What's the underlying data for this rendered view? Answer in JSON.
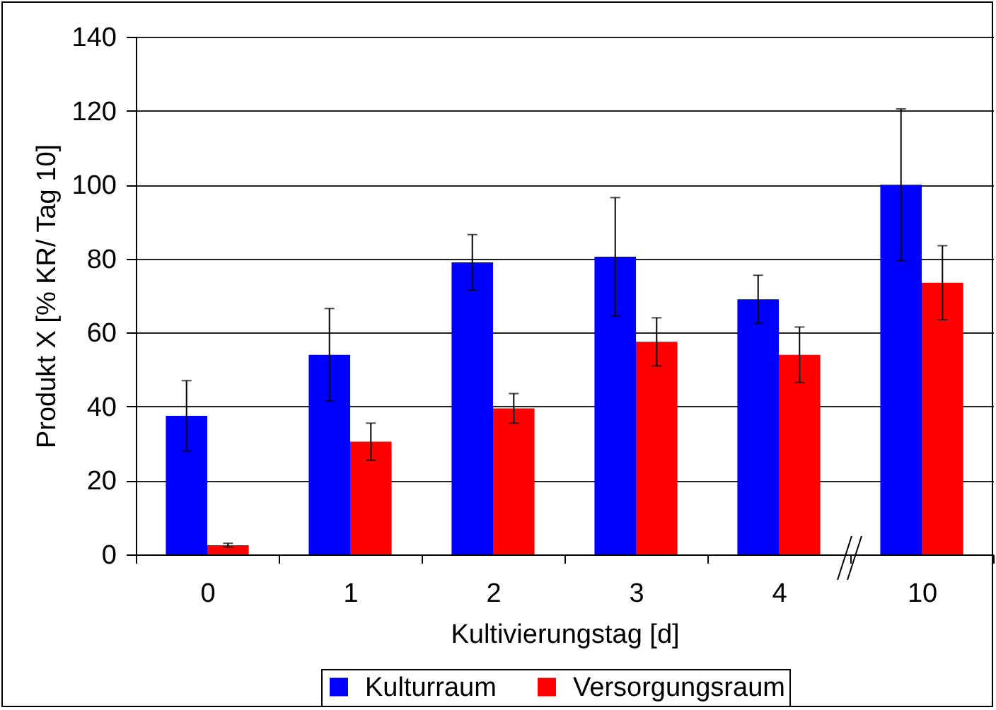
{
  "chart_data": {
    "type": "bar",
    "xlabel": "Kultivierungstag [d]",
    "ylabel": "Produkt X [% KR/ Tag 10]",
    "categories": [
      "0",
      "1",
      "2",
      "3",
      "4",
      "10"
    ],
    "series": [
      {
        "name": "Kulturraum",
        "color": "#0000ff",
        "values": [
          37.5,
          54,
          79,
          80.5,
          69,
          100
        ],
        "errors": [
          9.5,
          12.5,
          7.5,
          16,
          6.5,
          20.5
        ]
      },
      {
        "name": "Versorgungsraum",
        "color": "#ff0000",
        "values": [
          2.5,
          30.5,
          39.5,
          57.5,
          54,
          73.5
        ],
        "errors": [
          0.5,
          5,
          4,
          6.5,
          7.5,
          10
        ]
      }
    ],
    "ylim": [
      0,
      140
    ],
    "yticks": [
      0,
      20,
      40,
      60,
      80,
      100,
      120,
      140
    ],
    "grid": "y",
    "legend": "bottom"
  }
}
